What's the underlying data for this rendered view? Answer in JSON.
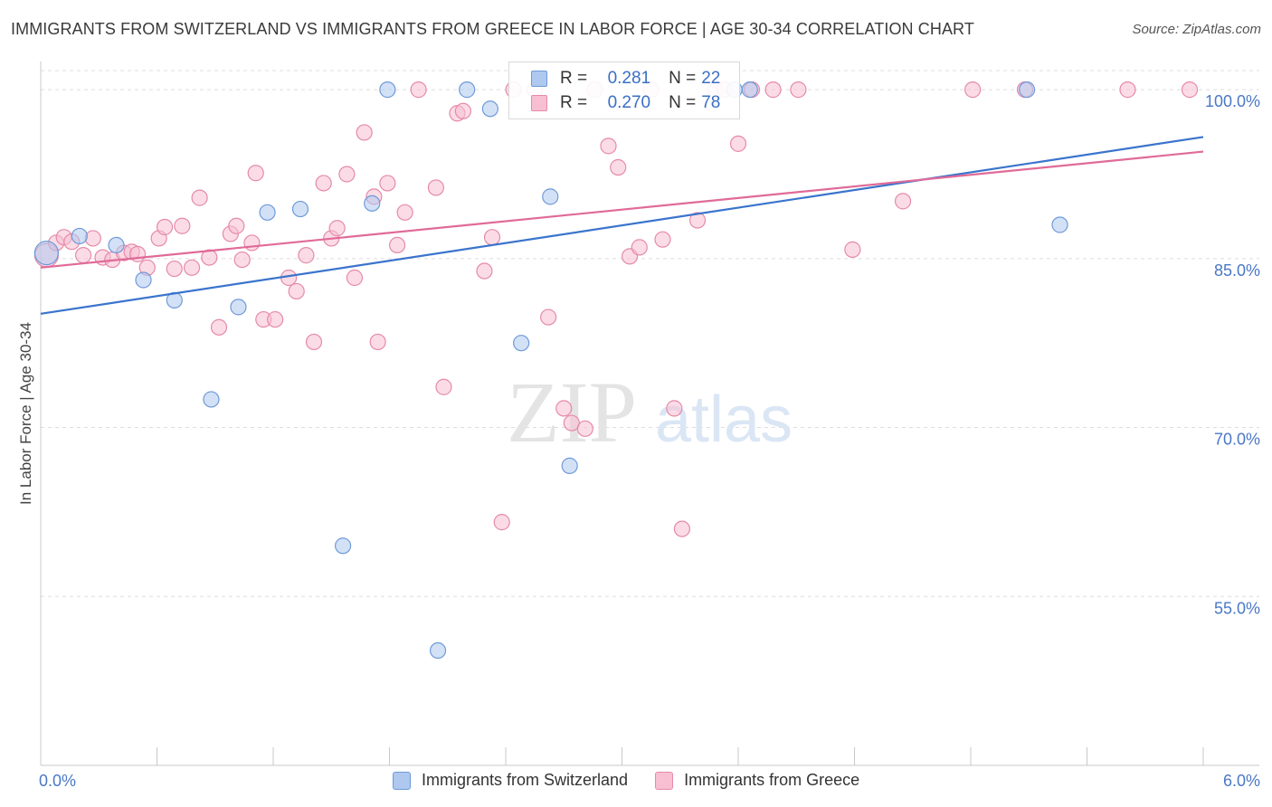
{
  "title": "IMMIGRANTS FROM SWITZERLAND VS IMMIGRANTS FROM GREECE IN LABOR FORCE | AGE 30-34 CORRELATION CHART",
  "source": "Source: ZipAtlas.com",
  "watermark": {
    "zip": "ZIP",
    "atlas": "atlas"
  },
  "legend": {
    "r_label": "R =",
    "n_label": "N =",
    "series": [
      {
        "name": "Immigrants from Switzerland",
        "r": "0.281",
        "n": "22",
        "fill": "#aec8f0",
        "stroke": "#6f9ad8"
      },
      {
        "name": "Immigrants from Greece",
        "r": "0.270",
        "n": "78",
        "fill": "#f8bfd2",
        "stroke": "#e58aaa"
      }
    ]
  },
  "chart_data": {
    "type": "scatter",
    "title": "IMMIGRANTS FROM SWITZERLAND VS IMMIGRANTS FROM GREECE IN LABOR FORCE | AGE 30-34 CORRELATION CHART",
    "xlabel": "",
    "ylabel": "In Labor Force | Age 30-34",
    "xlim": [
      0,
      6
    ],
    "ylim": [
      40,
      102.5
    ],
    "x_tick_labels": [
      "0.0%",
      "6.0%"
    ],
    "y_ticks": [
      55,
      70,
      85,
      100
    ],
    "y_tick_labels": [
      "55.0%",
      "70.0%",
      "85.0%",
      "100.0%"
    ],
    "grid": "horizontal dashed",
    "series": [
      {
        "name": "Immigrants from Switzerland",
        "color": "#6f9ad8",
        "fill": "#aec8f0",
        "trend": {
          "x": [
            0,
            6
          ],
          "y": [
            80.1,
            95.8
          ]
        },
        "points": [
          [
            0.03,
            85.5
          ],
          [
            0.2,
            87.0
          ],
          [
            0.39,
            86.2
          ],
          [
            0.53,
            83.1
          ],
          [
            0.69,
            81.3
          ],
          [
            0.88,
            72.5
          ],
          [
            1.02,
            80.7
          ],
          [
            1.17,
            89.1
          ],
          [
            1.34,
            89.4
          ],
          [
            1.56,
            59.5
          ],
          [
            1.71,
            89.9
          ],
          [
            1.79,
            100.0
          ],
          [
            2.05,
            50.2
          ],
          [
            2.2,
            100.0
          ],
          [
            2.32,
            98.3
          ],
          [
            2.48,
            77.5
          ],
          [
            2.63,
            90.5
          ],
          [
            2.73,
            66.6
          ],
          [
            3.58,
            100.0
          ],
          [
            3.66,
            100.0
          ],
          [
            5.09,
            100.0
          ],
          [
            5.26,
            88.0
          ]
        ]
      },
      {
        "name": "Immigrants from Greece",
        "color": "#e58aaa",
        "fill": "#f8bfd2",
        "trend": {
          "x": [
            0,
            6
          ],
          "y": [
            84.2,
            94.5
          ]
        },
        "points": [
          [
            0.03,
            85.3
          ],
          [
            0.08,
            86.4
          ],
          [
            0.12,
            86.9
          ],
          [
            0.16,
            86.5
          ],
          [
            0.22,
            85.3
          ],
          [
            0.27,
            86.8
          ],
          [
            0.32,
            85.1
          ],
          [
            0.37,
            84.9
          ],
          [
            0.43,
            85.5
          ],
          [
            0.47,
            85.6
          ],
          [
            0.5,
            85.4
          ],
          [
            0.55,
            84.2
          ],
          [
            0.61,
            86.8
          ],
          [
            0.64,
            87.8
          ],
          [
            0.69,
            84.1
          ],
          [
            0.73,
            87.9
          ],
          [
            0.78,
            84.2
          ],
          [
            0.82,
            90.4
          ],
          [
            0.87,
            85.1
          ],
          [
            0.92,
            78.9
          ],
          [
            0.98,
            87.2
          ],
          [
            1.01,
            87.9
          ],
          [
            1.04,
            84.9
          ],
          [
            1.09,
            86.4
          ],
          [
            1.11,
            92.6
          ],
          [
            1.15,
            79.6
          ],
          [
            1.21,
            79.6
          ],
          [
            1.28,
            83.3
          ],
          [
            1.32,
            82.1
          ],
          [
            1.37,
            85.3
          ],
          [
            1.41,
            77.6
          ],
          [
            1.46,
            91.7
          ],
          [
            1.5,
            86.8
          ],
          [
            1.53,
            87.7
          ],
          [
            1.58,
            92.5
          ],
          [
            1.62,
            83.3
          ],
          [
            1.67,
            96.2
          ],
          [
            1.72,
            90.5
          ],
          [
            1.74,
            77.6
          ],
          [
            1.79,
            91.7
          ],
          [
            1.84,
            86.2
          ],
          [
            1.88,
            89.1
          ],
          [
            1.95,
            100.0
          ],
          [
            2.04,
            91.3
          ],
          [
            2.08,
            73.6
          ],
          [
            2.15,
            97.9
          ],
          [
            2.18,
            98.1
          ],
          [
            2.29,
            83.9
          ],
          [
            2.33,
            86.9
          ],
          [
            2.38,
            61.6
          ],
          [
            2.44,
            100.0
          ],
          [
            2.55,
            100.0
          ],
          [
            2.62,
            79.8
          ],
          [
            2.7,
            71.7
          ],
          [
            2.74,
            70.4
          ],
          [
            2.81,
            69.9
          ],
          [
            2.86,
            100.0
          ],
          [
            2.93,
            95.0
          ],
          [
            2.98,
            93.1
          ],
          [
            3.04,
            85.2
          ],
          [
            3.09,
            86.0
          ],
          [
            3.15,
            100.0
          ],
          [
            3.21,
            86.7
          ],
          [
            3.27,
            71.7
          ],
          [
            3.31,
            61.0
          ],
          [
            3.39,
            88.4
          ],
          [
            3.48,
            100.0
          ],
          [
            3.53,
            100.0
          ],
          [
            3.6,
            95.2
          ],
          [
            3.67,
            100.0
          ],
          [
            3.78,
            100.0
          ],
          [
            3.91,
            100.0
          ],
          [
            4.19,
            85.8
          ],
          [
            4.45,
            90.1
          ],
          [
            4.81,
            100.0
          ],
          [
            5.08,
            100.0
          ],
          [
            5.61,
            100.0
          ],
          [
            5.93,
            100.0
          ]
        ]
      }
    ]
  }
}
